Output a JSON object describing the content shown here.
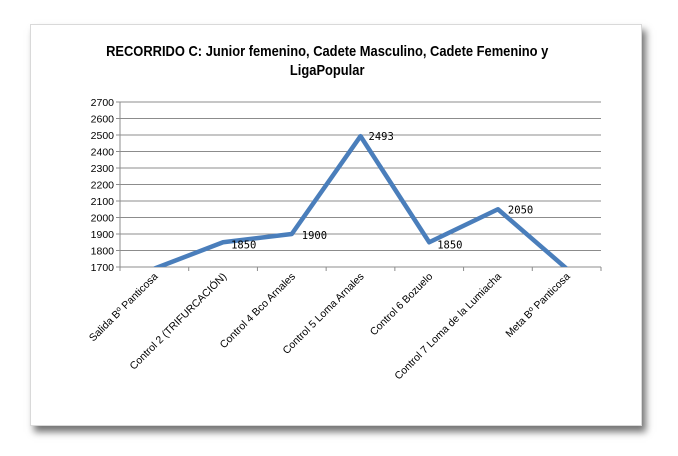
{
  "chart_data": {
    "type": "line",
    "title": "RECORRIDO C: Junior femenino, Cadete Masculino, Cadete Femenino y LigaPopular",
    "categories": [
      "Salida Bº Panticosa",
      "Control 2 (TRIFURCACIÓN)",
      "Control 4 Bco Arnales",
      "Control 5 Loma Arnales",
      "Control 6 Bozuelo",
      "Control 7 Loma de la Lumiacha",
      "Meta Bº Panticosa"
    ],
    "series": [
      {
        "values": [
          1690,
          1850,
          1900,
          2493,
          1850,
          2050,
          1690
        ]
      }
    ],
    "data_labels": [
      "",
      "1850",
      "1900",
      "2493",
      "1850",
      "2050",
      ""
    ],
    "ylim": [
      1700,
      2700
    ],
    "yticks": [
      "1700",
      "1800",
      "1900",
      "2000",
      "2100",
      "2200",
      "2300",
      "2400",
      "2500",
      "2600",
      "2700"
    ],
    "grid": true,
    "legend": "none",
    "line_color": "#4a7ebb"
  }
}
